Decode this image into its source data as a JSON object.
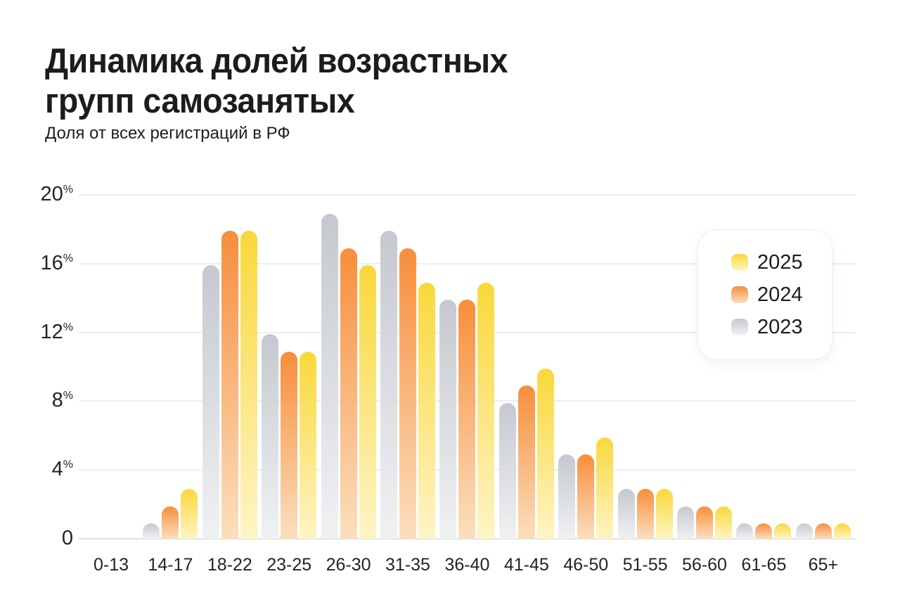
{
  "title": "Динамика долей возрастных\nгрупп самозанятых",
  "subtitle": "Доля от всех регистраций в РФ",
  "chart_data": {
    "type": "bar",
    "title": "Динамика долей возрастных групп самозанятых",
    "subtitle": "Доля от всех регистраций в РФ",
    "categories": [
      "0-13",
      "14-17",
      "18-22",
      "23-25",
      "26-30",
      "31-35",
      "36-40",
      "41-45",
      "46-50",
      "51-55",
      "56-60",
      "61-65",
      "65+"
    ],
    "series": [
      {
        "name": "2025",
        "color_top": "#F9D83A",
        "color_bottom": "#FEF4C6",
        "values": [
          0,
          2.9,
          17.9,
          10.9,
          15.9,
          14.9,
          14.9,
          9.9,
          5.9,
          2.9,
          1.9,
          0.9,
          0.9
        ]
      },
      {
        "name": "2024",
        "color_top": "#F78E3C",
        "color_bottom": "#FBDFBE",
        "values": [
          0,
          1.9,
          17.9,
          10.9,
          16.9,
          16.9,
          13.9,
          8.9,
          4.9,
          2.9,
          1.9,
          0.9,
          0.9
        ]
      },
      {
        "name": "2023",
        "color_top": "#C5C9CF",
        "color_bottom": "#F0F1F3",
        "values": [
          0,
          0.9,
          15.9,
          11.9,
          18.9,
          17.9,
          13.9,
          7.9,
          4.9,
          2.9,
          1.9,
          0.9,
          0.9
        ]
      }
    ],
    "xlabel": "",
    "ylabel": "",
    "y_ticks": [
      0,
      4,
      8,
      12,
      16,
      20
    ],
    "y_tick_suffix": "%",
    "ylim": [
      0,
      20
    ],
    "grid": true,
    "legend_entries": [
      "2025",
      "2024",
      "2023"
    ],
    "legend_position": "upper-right",
    "gridline_color": "#ECEEF0",
    "zero_line_color": "#DFE1E4",
    "text_color": "#1C1C1E"
  }
}
